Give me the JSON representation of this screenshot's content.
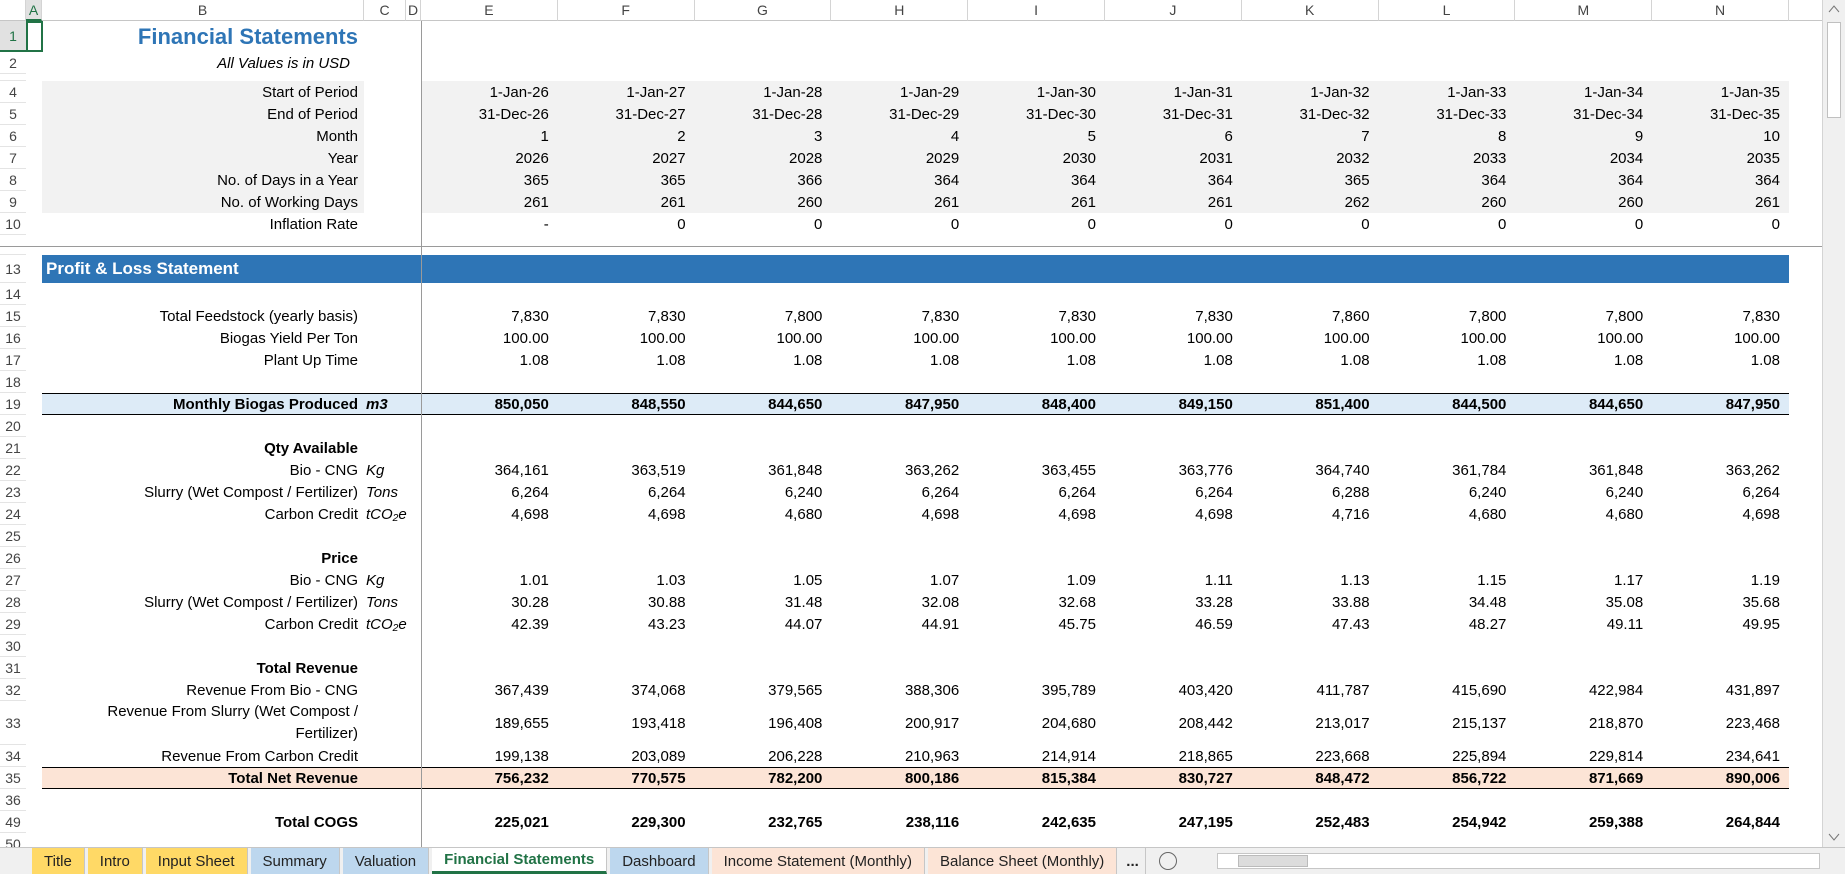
{
  "columns": [
    "A",
    "B",
    "C",
    "D",
    "E",
    "F",
    "G",
    "H",
    "I",
    "J",
    "K",
    "L",
    "M",
    "N"
  ],
  "rows": [
    {
      "num": "1",
      "kind": "title",
      "label": "Financial Statements"
    },
    {
      "num": "2",
      "kind": "subtitle",
      "label": "All Values is in USD"
    },
    {
      "num": "4",
      "kind": "data",
      "fill": "#f2f2f2",
      "label": "Start of Period",
      "values": [
        "1-Jan-26",
        "1-Jan-27",
        "1-Jan-28",
        "1-Jan-29",
        "1-Jan-30",
        "1-Jan-31",
        "1-Jan-32",
        "1-Jan-33",
        "1-Jan-34",
        "1-Jan-35"
      ]
    },
    {
      "num": "5",
      "kind": "data",
      "fill": "#f2f2f2",
      "label": "End of Period",
      "values": [
        "31-Dec-26",
        "31-Dec-27",
        "31-Dec-28",
        "31-Dec-29",
        "31-Dec-30",
        "31-Dec-31",
        "31-Dec-32",
        "31-Dec-33",
        "31-Dec-34",
        "31-Dec-35"
      ]
    },
    {
      "num": "6",
      "kind": "data",
      "fill": "#f2f2f2",
      "label": "Month",
      "values": [
        "1",
        "2",
        "3",
        "4",
        "5",
        "6",
        "7",
        "8",
        "9",
        "10"
      ]
    },
    {
      "num": "7",
      "kind": "data",
      "fill": "#f2f2f2",
      "label": "Year",
      "values": [
        "2026",
        "2027",
        "2028",
        "2029",
        "2030",
        "2031",
        "2032",
        "2033",
        "2034",
        "2035"
      ]
    },
    {
      "num": "8",
      "kind": "data",
      "fill": "#f2f2f2",
      "label": "No. of Days in a Year",
      "values": [
        "365",
        "365",
        "366",
        "364",
        "364",
        "364",
        "365",
        "364",
        "364",
        "364"
      ]
    },
    {
      "num": "9",
      "kind": "data",
      "fill": "#f2f2f2",
      "label": "No. of Working Days",
      "values": [
        "261",
        "261",
        "260",
        "261",
        "261",
        "261",
        "262",
        "260",
        "260",
        "261"
      ]
    },
    {
      "num": "10",
      "kind": "data",
      "label": "Inflation Rate",
      "values": [
        "-",
        "0",
        "0",
        "0",
        "0",
        "0",
        "0",
        "0",
        "0",
        "0"
      ]
    },
    {
      "num": "13",
      "kind": "section",
      "fill": "#2e75b6",
      "label": "Profit & Loss Statement"
    },
    {
      "num": "14",
      "kind": "data"
    },
    {
      "num": "15",
      "kind": "data",
      "label": "Total Feedstock (yearly basis)",
      "values": [
        "7,830",
        "7,830",
        "7,800",
        "7,830",
        "7,830",
        "7,830",
        "7,860",
        "7,800",
        "7,800",
        "7,830"
      ]
    },
    {
      "num": "16",
      "kind": "data",
      "label": "Biogas Yield Per Ton",
      "values": [
        "100.00",
        "100.00",
        "100.00",
        "100.00",
        "100.00",
        "100.00",
        "100.00",
        "100.00",
        "100.00",
        "100.00"
      ]
    },
    {
      "num": "17",
      "kind": "data",
      "label": "Plant Up Time",
      "values": [
        "1.08",
        "1.08",
        "1.08",
        "1.08",
        "1.08",
        "1.08",
        "1.08",
        "1.08",
        "1.08",
        "1.08"
      ]
    },
    {
      "num": "18",
      "kind": "data"
    },
    {
      "num": "19",
      "kind": "data",
      "bold": true,
      "border": true,
      "fill": "#ddebf7",
      "label": "Monthly Biogas Produced",
      "unit": "m3",
      "values": [
        "850,050",
        "848,550",
        "844,650",
        "847,950",
        "848,400",
        "849,150",
        "851,400",
        "844,500",
        "844,650",
        "847,950"
      ]
    },
    {
      "num": "20",
      "kind": "data"
    },
    {
      "num": "21",
      "kind": "data",
      "bold": true,
      "label": "Qty Available"
    },
    {
      "num": "22",
      "kind": "data",
      "label": "Bio - CNG",
      "unit": "Kg",
      "values": [
        "364,161",
        "363,519",
        "361,848",
        "363,262",
        "363,455",
        "363,776",
        "364,740",
        "361,784",
        "361,848",
        "363,262"
      ]
    },
    {
      "num": "23",
      "kind": "data",
      "label": "Slurry (Wet Compost / Fertilizer)",
      "unit": "Tons",
      "values": [
        "6,264",
        "6,264",
        "6,240",
        "6,264",
        "6,264",
        "6,264",
        "6,288",
        "6,240",
        "6,240",
        "6,264"
      ]
    },
    {
      "num": "24",
      "kind": "data",
      "label": "Carbon Credit",
      "unit": "tCO₂e",
      "values": [
        "4,698",
        "4,698",
        "4,680",
        "4,698",
        "4,698",
        "4,698",
        "4,716",
        "4,680",
        "4,680",
        "4,698"
      ]
    },
    {
      "num": "25",
      "kind": "data"
    },
    {
      "num": "26",
      "kind": "data",
      "bold": true,
      "label": "Price"
    },
    {
      "num": "27",
      "kind": "data",
      "label": "Bio - CNG",
      "unit": "Kg",
      "values": [
        "1.01",
        "1.03",
        "1.05",
        "1.07",
        "1.09",
        "1.11",
        "1.13",
        "1.15",
        "1.17",
        "1.19"
      ]
    },
    {
      "num": "28",
      "kind": "data",
      "label": "Slurry (Wet Compost / Fertilizer)",
      "unit": "Tons",
      "values": [
        "30.28",
        "30.88",
        "31.48",
        "32.08",
        "32.68",
        "33.28",
        "33.88",
        "34.48",
        "35.08",
        "35.68"
      ]
    },
    {
      "num": "29",
      "kind": "data",
      "label": "Carbon Credit",
      "unit": "tCO₂e",
      "values": [
        "42.39",
        "43.23",
        "44.07",
        "44.91",
        "45.75",
        "46.59",
        "47.43",
        "48.27",
        "49.11",
        "49.95"
      ]
    },
    {
      "num": "30",
      "kind": "data"
    },
    {
      "num": "31",
      "kind": "data",
      "bold": true,
      "label": "Total Revenue"
    },
    {
      "num": "32",
      "kind": "data",
      "label": "Revenue From Bio - CNG",
      "values": [
        "367,439",
        "374,068",
        "379,565",
        "388,306",
        "395,789",
        "403,420",
        "411,787",
        "415,690",
        "422,984",
        "431,897"
      ]
    },
    {
      "num": "33",
      "kind": "wrap",
      "label": "Revenue From Slurry (Wet Compost / Fertilizer)",
      "values": [
        "189,655",
        "193,418",
        "196,408",
        "200,917",
        "204,680",
        "208,442",
        "213,017",
        "215,137",
        "218,870",
        "223,468"
      ]
    },
    {
      "num": "34",
      "kind": "data",
      "label": "Revenue From Carbon Credit",
      "values": [
        "199,138",
        "203,089",
        "206,228",
        "210,963",
        "214,914",
        "218,865",
        "223,668",
        "225,894",
        "229,814",
        "234,641"
      ]
    },
    {
      "num": "35",
      "kind": "data",
      "bold": true,
      "border": true,
      "fill": "#fce4d6",
      "label": "Total Net Revenue",
      "values": [
        "756,232",
        "770,575",
        "782,200",
        "800,186",
        "815,384",
        "830,727",
        "848,472",
        "856,722",
        "871,669",
        "890,006"
      ]
    },
    {
      "num": "36",
      "kind": "data"
    },
    {
      "num": "49",
      "kind": "data",
      "bold": true,
      "label": "Total COGS",
      "values": [
        "225,021",
        "229,300",
        "232,765",
        "238,116",
        "242,635",
        "247,195",
        "252,483",
        "254,942",
        "259,388",
        "264,844"
      ]
    },
    {
      "num": "50",
      "kind": "data"
    }
  ],
  "tabs": [
    {
      "name": "Title",
      "color": "#ffd966"
    },
    {
      "name": "Intro",
      "color": "#ffd966"
    },
    {
      "name": "Input Sheet",
      "color": "#ffd966"
    },
    {
      "name": "Summary",
      "color": "#bdd7ee"
    },
    {
      "name": "Valuation",
      "color": "#bdd7ee"
    },
    {
      "name": "Financial Statements",
      "color": "#ffffff",
      "active": true
    },
    {
      "name": "Dashboard",
      "color": "#bdd7ee"
    },
    {
      "name": "Income Statement (Monthly)",
      "color": "#fce4d6"
    },
    {
      "name": "Balance Sheet (Monthly)",
      "color": "#fce4d6"
    }
  ],
  "more_tabs": "..."
}
